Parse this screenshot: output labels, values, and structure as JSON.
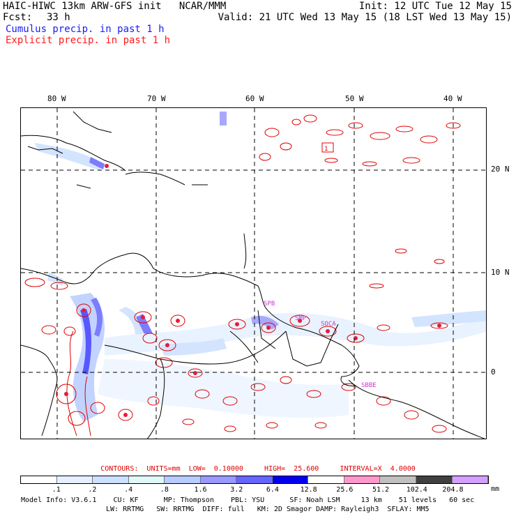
{
  "header": {
    "title": "HAIC-HIWC 13km ARW-GFS init   NCAR/MMM",
    "init": "Init: 12 UTC Tue 12 May 15",
    "fcst_label": "Fcst:",
    "fcst_value": "33 h",
    "valid": "Valid: 21 UTC Wed 13 May 15 (18 LST Wed 13 May 15)",
    "cumulus_legend": "Cumulus precip. in past 1 h",
    "explicit_legend": "Explicit precip. in past 1 h"
  },
  "colors": {
    "cumulus": "#1a1aff",
    "explicit": "#ff1a1a",
    "coast": "#000000",
    "site": "#cc33cc"
  },
  "map": {
    "lon_labels": [
      "80 W",
      "70 W",
      "60 W",
      "50 W",
      "40 W"
    ],
    "lat_labels": [
      "20 N",
      "10 N",
      "0"
    ],
    "sites": [
      "SPB",
      "SMP",
      "SOCA",
      "SBBE"
    ],
    "high_marker": "1"
  },
  "contour_info": {
    "label": "CONTOURS:",
    "units": "UNITS=mm",
    "low": "LOW=  0.10000",
    "high": "HIGH=  25.600",
    "interval": "INTERVAL=X  4.0000"
  },
  "colorbar": {
    "ticks": [
      ".1",
      ".2",
      ".4",
      ".8",
      "1.6",
      "3.2",
      "6.4",
      "12.8",
      "25.6",
      "51.2",
      "102.4",
      "204.8"
    ],
    "colors": [
      "#ffffff",
      "#e6f0ff",
      "#cce0ff",
      "#e0f8f8",
      "#b8ccff",
      "#9999ff",
      "#6666ff",
      "#0000ee",
      "#ffffff",
      "#ff99cc",
      "#c0c0c0",
      "#404040",
      "#d4a0ff"
    ],
    "units": "mm"
  },
  "model_info": {
    "line1": "Model Info: V3.6.1    CU: KF      MP: Thompson    PBL: YSU      SF: Noah LSM     13 km    51 levels   60 sec",
    "line2": "LW: RRTMG   SW: RRTMG  DIFF: full   KM: 2D Smagor DAMP: Rayleigh3  SFLAY: MM5"
  }
}
